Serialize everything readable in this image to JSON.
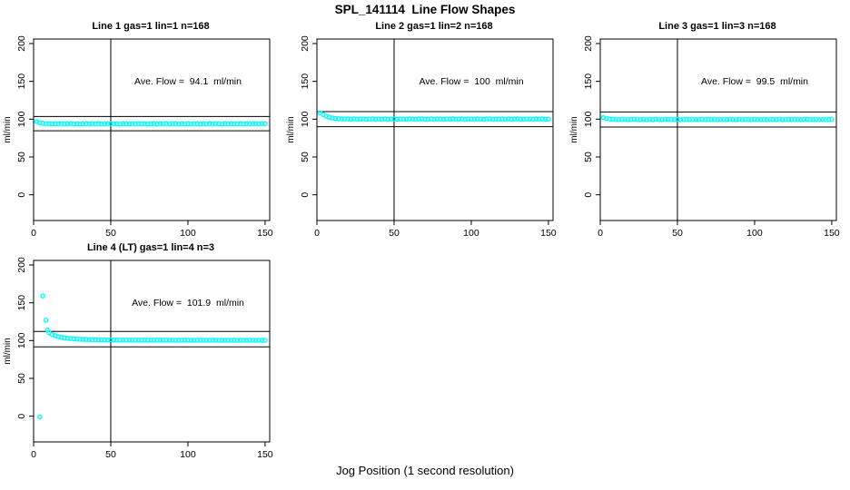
{
  "page": {
    "title": "SPL_141114  Line Flow Shapes",
    "xlabel": "Jog Position (1 second resolution)"
  },
  "chart_data": [
    {
      "type": "scatter",
      "title": "Line 1 gas=1 lin=1 n=168",
      "ylabel": "ml/min",
      "annotation": "Ave. Flow =  94.1  ml/min",
      "ave_flow_ml_min": 94.1,
      "n": 168,
      "point_color": "#00ffff",
      "line_color": "#000000",
      "ref_lines": {
        "upper": 103.5,
        "lower": 84.7,
        "vertical_x": 50
      },
      "xlim": [
        0,
        153
      ],
      "ylim": [
        -34,
        206
      ],
      "xticks": [
        0,
        50,
        100,
        150
      ],
      "yticks": [
        0,
        50,
        100,
        150,
        200
      ],
      "x_start": 2,
      "x_step": 2,
      "y": [
        96.8,
        95.3,
        94.6,
        94.2,
        94.0,
        93.8,
        94.1,
        93.9,
        94.2,
        93.7,
        94.0,
        94.3,
        93.8,
        94.1,
        93.6,
        94.0,
        94.2,
        93.8,
        94.1,
        93.9,
        94.3,
        93.7,
        94.0,
        94.2,
        93.8,
        94.1,
        93.9,
        93.6,
        94.2,
        94.0,
        93.8,
        94.1,
        93.7,
        94.3,
        93.9,
        94.1,
        93.8,
        94.0,
        94.2,
        93.7,
        94.1,
        93.9,
        94.3,
        93.8,
        94.0,
        94.2,
        93.6,
        94.1,
        93.9,
        94.0,
        93.8,
        94.2,
        94.1,
        93.7,
        94.0,
        93.9,
        94.3,
        93.8,
        94.1,
        94.0,
        93.7,
        94.2,
        93.9,
        94.1,
        93.8,
        94.0,
        94.3,
        93.7,
        94.1,
        93.9,
        94.0,
        94.2,
        93.8,
        94.1,
        93.9
      ],
      "outliers": []
    },
    {
      "type": "scatter",
      "title": "Line 2 gas=1 lin=2 n=168",
      "ylabel": "ml/min",
      "annotation": "Ave. Flow =  100  ml/min",
      "ave_flow_ml_min": 100,
      "n": 168,
      "point_color": "#00ffff",
      "line_color": "#000000",
      "ref_lines": {
        "upper": 110.0,
        "lower": 90.0,
        "vertical_x": 50
      },
      "xlim": [
        0,
        153
      ],
      "ylim": [
        -34,
        206
      ],
      "xticks": [
        0,
        50,
        100,
        150
      ],
      "yticks": [
        0,
        50,
        100,
        150,
        200
      ],
      "x_start": 2,
      "x_step": 2,
      "y": [
        108.5,
        106.0,
        104.0,
        102.5,
        101.5,
        101.0,
        100.6,
        100.4,
        100.2,
        100.5,
        100.0,
        100.3,
        99.9,
        100.2,
        100.4,
        99.8,
        100.1,
        100.3,
        99.9,
        100.2,
        100.0,
        100.4,
        99.8,
        100.1,
        100.3,
        99.9,
        100.2,
        100.0,
        99.8,
        100.3,
        100.1,
        99.9,
        100.2,
        100.4,
        99.8,
        100.0,
        100.2,
        99.9,
        100.3,
        100.1,
        99.8,
        100.2,
        100.0,
        100.4,
        99.9,
        100.1,
        100.3,
        99.8,
        100.2,
        100.0,
        99.9,
        100.3,
        100.1,
        99.8,
        100.2,
        100.4,
        99.9,
        100.1,
        100.0,
        100.3,
        99.8,
        100.2,
        99.9,
        100.1,
        100.3,
        100.0,
        99.8,
        100.2,
        100.1,
        99.9,
        100.3,
        100.0,
        100.2,
        99.8,
        100.1
      ],
      "outliers": []
    },
    {
      "type": "scatter",
      "title": "Line 3 gas=1 lin=3 n=168",
      "ylabel": "ml/min",
      "annotation": "Ave. Flow =  99.5  ml/min",
      "ave_flow_ml_min": 99.5,
      "n": 168,
      "point_color": "#00ffff",
      "line_color": "#000000",
      "ref_lines": {
        "upper": 109.5,
        "lower": 89.6,
        "vertical_x": 50
      },
      "xlim": [
        0,
        153
      ],
      "ylim": [
        -34,
        206
      ],
      "xticks": [
        0,
        50,
        100,
        150
      ],
      "yticks": [
        0,
        50,
        100,
        150,
        200
      ],
      "x_start": 2,
      "x_step": 2,
      "y": [
        102.0,
        100.8,
        100.2,
        99.8,
        99.6,
        99.4,
        99.7,
        99.5,
        99.3,
        99.6,
        99.8,
        99.4,
        99.5,
        99.7,
        99.3,
        99.6,
        99.4,
        99.8,
        99.5,
        99.3,
        99.7,
        99.5,
        99.6,
        99.4,
        99.8,
        99.3,
        99.5,
        99.7,
        99.4,
        99.6,
        99.5,
        99.3,
        99.8,
        99.4,
        99.6,
        99.5,
        99.7,
        99.3,
        99.5,
        99.6,
        99.4,
        99.8,
        99.5,
        99.3,
        99.7,
        99.4,
        99.6,
        99.5,
        99.3,
        99.8,
        99.4,
        99.5,
        99.7,
        99.3,
        99.6,
        99.5,
        99.4,
        99.8,
        99.3,
        99.5,
        99.6,
        99.4,
        99.7,
        99.5,
        99.3,
        99.6,
        99.8,
        99.4,
        99.5,
        99.7,
        99.3,
        99.6,
        99.4,
        99.5,
        99.7
      ],
      "outliers": []
    },
    {
      "type": "scatter",
      "title": "Line 4 (LT) gas=1 lin=4 n=3",
      "ylabel": "ml/min",
      "annotation": "Ave. Flow =  101.9  ml/min",
      "ave_flow_ml_min": 101.9,
      "n": 3,
      "point_color": "#00ffff",
      "line_color": "#000000",
      "ref_lines": {
        "upper": 112.1,
        "lower": 91.7,
        "vertical_x": 50
      },
      "xlim": [
        0,
        153
      ],
      "ylim": [
        -34,
        206
      ],
      "xticks": [
        0,
        50,
        100,
        150
      ],
      "yticks": [
        0,
        50,
        100,
        150,
        200
      ],
      "x_start": 10,
      "x_step": 2,
      "y": [
        110.5,
        108.0,
        106.5,
        105.2,
        104.3,
        103.6,
        103.0,
        102.6,
        102.3,
        102.0,
        101.8,
        101.6,
        101.5,
        101.3,
        101.2,
        101.1,
        101.0,
        100.9,
        101.1,
        100.8,
        100.9,
        100.7,
        100.8,
        100.6,
        100.9,
        100.7,
        100.5,
        100.8,
        100.6,
        100.7,
        100.5,
        100.8,
        100.4,
        100.7,
        100.5,
        100.6,
        100.8,
        100.4,
        100.6,
        100.5,
        100.7,
        100.3,
        100.6,
        100.4,
        100.7,
        100.5,
        100.3,
        100.6,
        100.4,
        100.5,
        100.7,
        100.3,
        100.5,
        100.6,
        100.4,
        100.2,
        100.6,
        100.4,
        100.5,
        100.3,
        100.6,
        100.2,
        100.5,
        100.4,
        100.3,
        100.6,
        100.4,
        100.2,
        100.5,
        100.3,
        100.4
      ],
      "outliers": [
        [
          4,
          -1
        ],
        [
          6,
          159
        ],
        [
          8,
          127
        ],
        [
          9,
          114
        ]
      ]
    }
  ]
}
